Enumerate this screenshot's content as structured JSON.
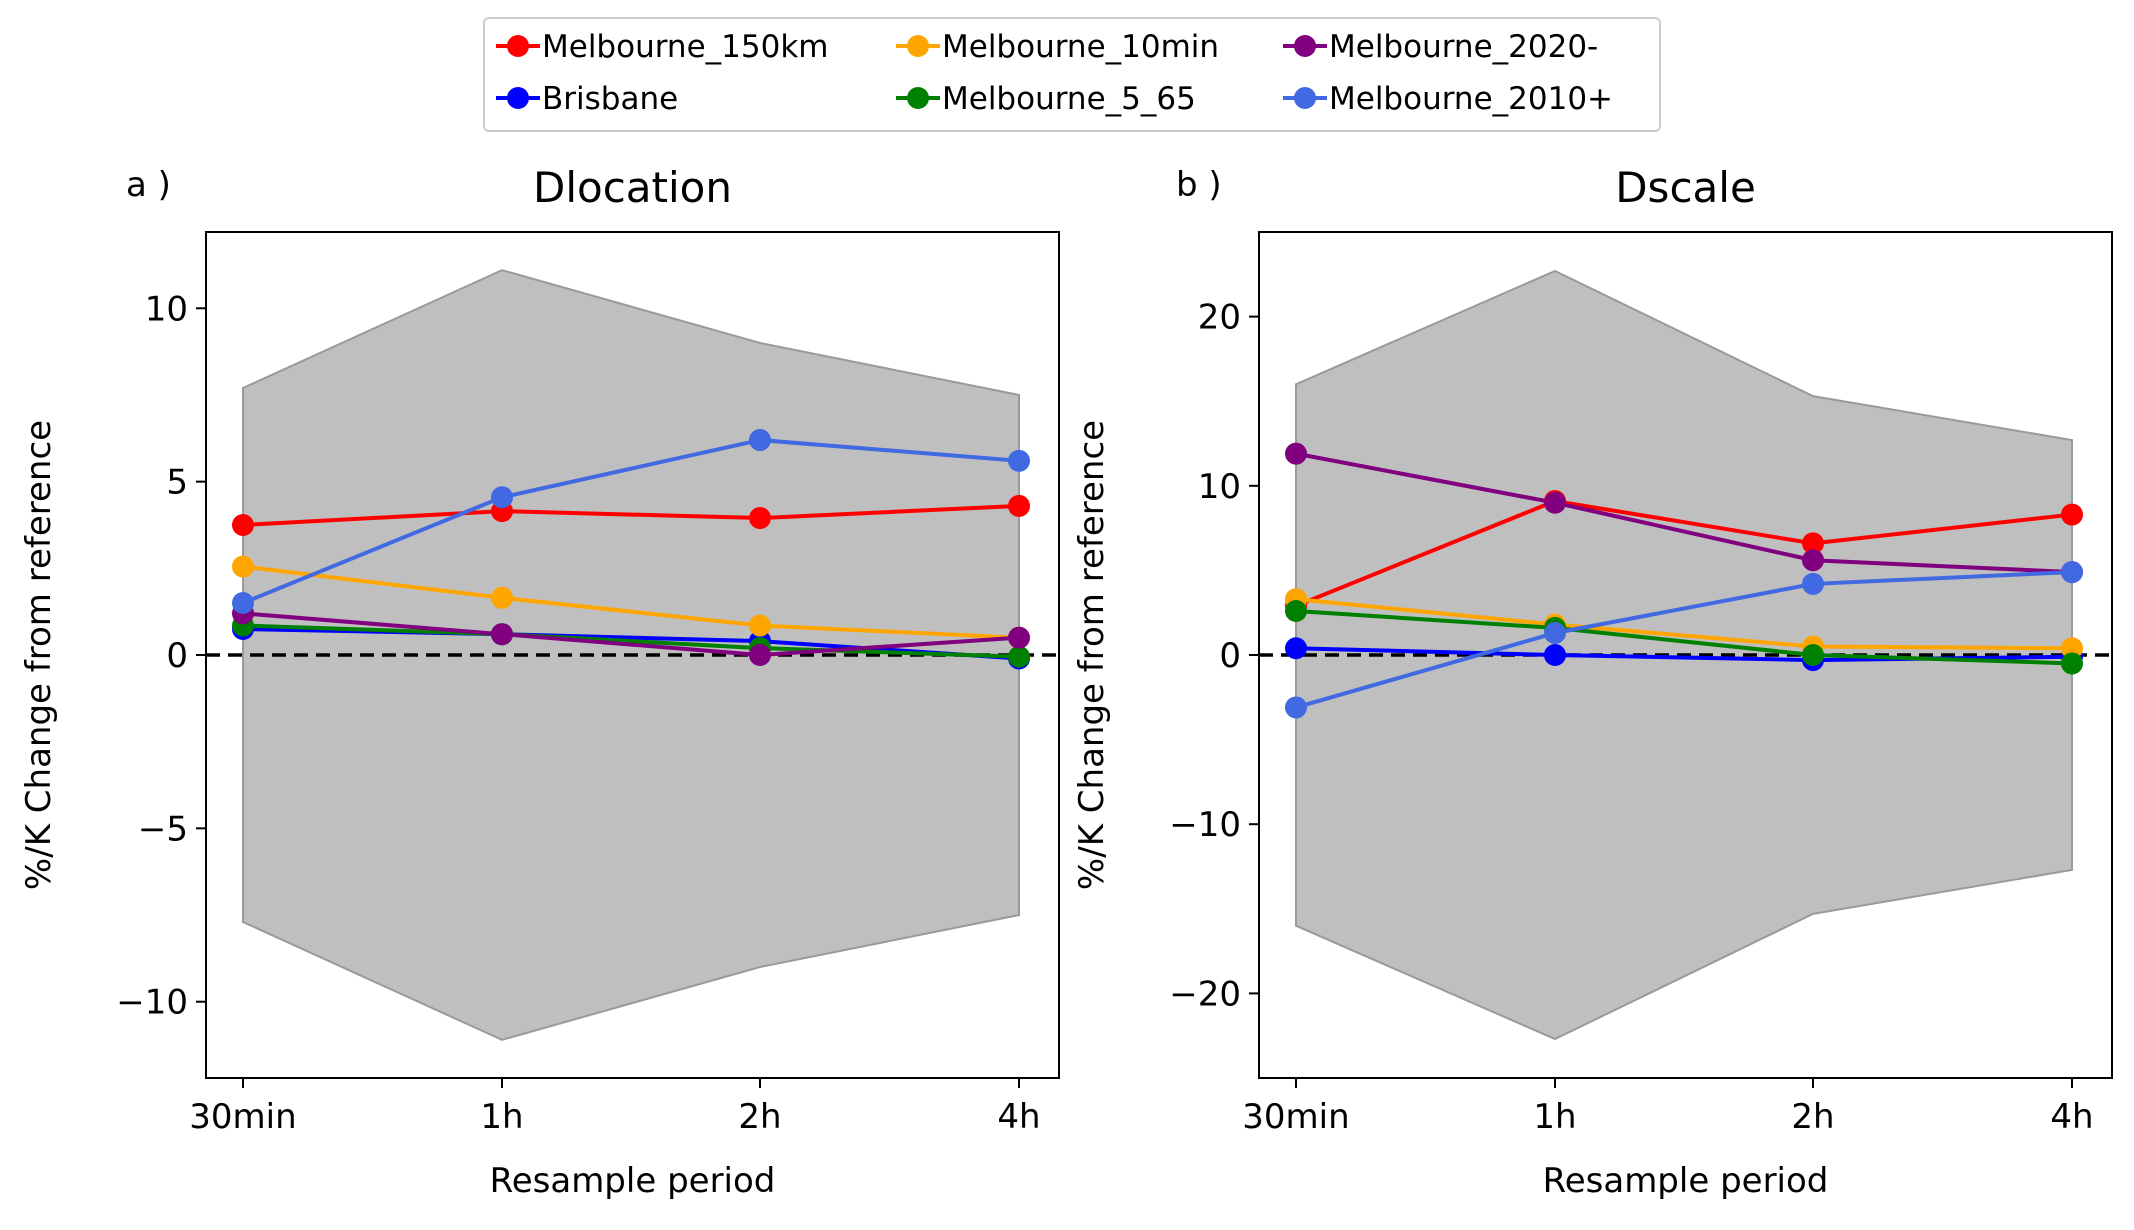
{
  "legend": {
    "placement": "top-center",
    "entries": [
      {
        "name": "Melbourne_150km",
        "color": "#ff0000"
      },
      {
        "name": "Brisbane",
        "color": "#0000ff"
      },
      {
        "name": "Melbourne_10min",
        "color": "#ffa500"
      },
      {
        "name": "Melbourne_5_65",
        "color": "#008000"
      },
      {
        "name": "Melbourne_2020-",
        "color": "#800080"
      },
      {
        "name": "Melbourne_2010+",
        "color": "#4169e1"
      }
    ]
  },
  "chart_data": [
    {
      "type": "line",
      "panel_label": "a )",
      "title": "Dlocation",
      "xlabel": "Resample period",
      "ylabel": "%/K Change from reference",
      "categories": [
        "30min",
        "1h",
        "2h",
        "4h"
      ],
      "ylim": [
        -12.2,
        12.2
      ],
      "yticks": [
        -10,
        -5,
        0,
        5,
        10
      ],
      "yticklabels": [
        "−10",
        "−5",
        "0",
        "5",
        "10"
      ],
      "reference_line": 0,
      "band": {
        "upper": [
          7.7,
          11.1,
          9.0,
          7.5
        ],
        "lower": [
          -7.7,
          -11.1,
          -9.0,
          -7.5
        ],
        "color": "#bfbfbf"
      },
      "series": [
        {
          "name": "Melbourne_150km",
          "values": [
            3.75,
            4.15,
            3.95,
            4.3
          ]
        },
        {
          "name": "Brisbane",
          "values": [
            0.75,
            0.6,
            0.4,
            -0.1
          ]
        },
        {
          "name": "Melbourne_10min",
          "values": [
            2.55,
            1.65,
            0.85,
            0.5
          ]
        },
        {
          "name": "Melbourne_5_65",
          "values": [
            0.85,
            0.6,
            0.2,
            -0.05
          ]
        },
        {
          "name": "Melbourne_2020-",
          "values": [
            1.2,
            0.6,
            0.0,
            0.5
          ]
        },
        {
          "name": "Melbourne_2010+",
          "values": [
            1.5,
            4.55,
            6.2,
            5.6
          ]
        }
      ]
    },
    {
      "type": "line",
      "panel_label": "b )",
      "title": "Dscale",
      "xlabel": "Resample period",
      "ylabel": "%/K Change from reference",
      "categories": [
        "30min",
        "1h",
        "2h",
        "4h"
      ],
      "ylim": [
        -25,
        25
      ],
      "yticks": [
        -20,
        -10,
        0,
        10,
        20
      ],
      "yticklabels": [
        "−20",
        "−10",
        "0",
        "10",
        "20"
      ],
      "reference_line": 0,
      "band": {
        "upper": [
          16.0,
          22.7,
          15.3,
          12.7
        ],
        "lower": [
          -16.0,
          -22.7,
          -15.3,
          -12.7
        ],
        "color": "#bfbfbf"
      },
      "series": [
        {
          "name": "Melbourne_150km",
          "values": [
            2.9,
            9.1,
            6.6,
            8.3
          ]
        },
        {
          "name": "Brisbane",
          "values": [
            0.4,
            0.0,
            -0.3,
            -0.1
          ]
        },
        {
          "name": "Melbourne_10min",
          "values": [
            3.3,
            1.8,
            0.5,
            0.4
          ]
        },
        {
          "name": "Melbourne_5_65",
          "values": [
            2.6,
            1.6,
            0.0,
            -0.5
          ]
        },
        {
          "name": "Melbourne_2020-",
          "values": [
            11.9,
            9.0,
            5.6,
            4.9
          ]
        },
        {
          "name": "Melbourne_2010+",
          "values": [
            -3.1,
            1.3,
            4.2,
            4.9
          ]
        }
      ]
    }
  ]
}
